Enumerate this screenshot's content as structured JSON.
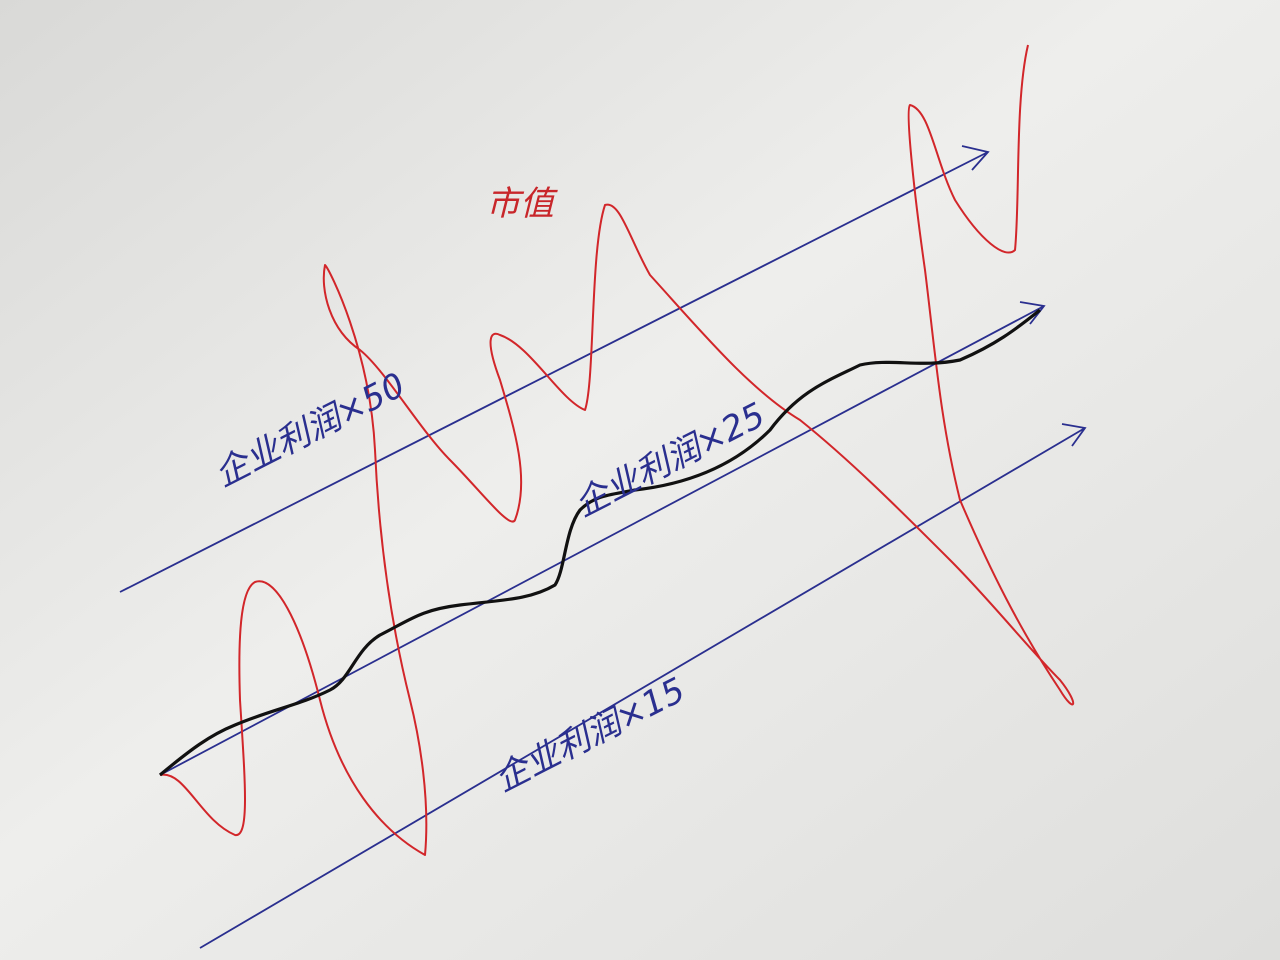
{
  "labels": {
    "market_value": "市值",
    "profit_x50": "企业利润×50",
    "profit_x25": "企业利润×25",
    "profit_x15": "企业利润×15"
  }
}
